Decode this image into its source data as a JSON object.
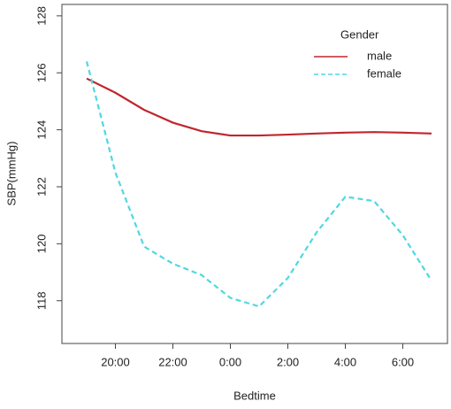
{
  "chart_data": {
    "type": "line",
    "x_label": "Bedtime",
    "y_label": "SBP(mmHg)",
    "categories": [
      null,
      "20:00",
      null,
      "22:00",
      null,
      "0:00",
      null,
      "2:00",
      null,
      "4:00",
      null,
      "6:00",
      null
    ],
    "series": [
      {
        "name": "male",
        "color": "#c0272d",
        "dash": false,
        "values": [
          125.8,
          125.3,
          124.7,
          124.25,
          123.95,
          123.8,
          123.8,
          123.83,
          123.87,
          123.9,
          123.92,
          123.9,
          123.87
        ]
      },
      {
        "name": "female",
        "color": "#4fd8e0",
        "dash": true,
        "values": [
          126.4,
          122.5,
          119.9,
          119.3,
          118.9,
          118.1,
          117.8,
          118.8,
          120.4,
          121.65,
          121.5,
          120.3,
          118.7
        ]
      }
    ],
    "legend_title": "Gender",
    "legend_position": "top-right",
    "ylim": [
      116.5,
      128.4
    ],
    "yticks": [
      118,
      120,
      122,
      124,
      126,
      128
    ],
    "grid": false
  }
}
